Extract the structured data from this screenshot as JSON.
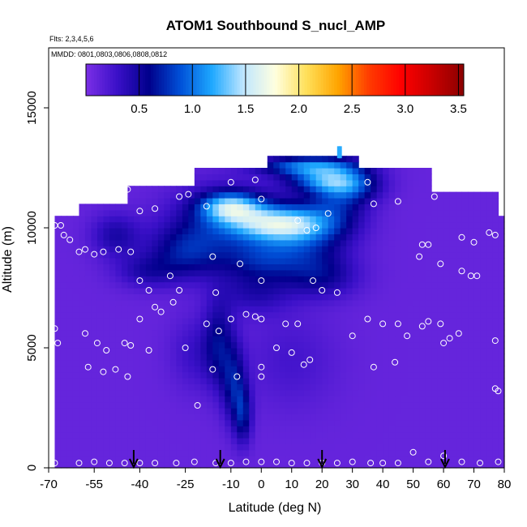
{
  "chart_data": {
    "type": "heatmap",
    "title": "ATOM1 Southbound S_nucl_AMP",
    "subtitle_flights": "Flts: 2,3,4,5,6",
    "subtitle_dates": "MMDD: 0801,0803,0806,0808,0812",
    "xlabel": "Latitude (deg N)",
    "ylabel": "Altitude (m)",
    "xlim": [
      -70,
      80
    ],
    "ylim": [
      0,
      17500
    ],
    "x_ticks": [
      -70,
      -55,
      -40,
      -25,
      -10,
      0,
      10,
      20,
      30,
      40,
      50,
      60,
      70,
      80
    ],
    "x_tick_labels": [
      "-70",
      "-55",
      "-40",
      "-25",
      "-10",
      "0",
      "10",
      "20",
      "30",
      "40",
      "50",
      "60",
      "70",
      "80"
    ],
    "y_ticks": [
      0,
      5000,
      10000,
      15000
    ],
    "y_tick_labels": [
      "0",
      "5000",
      "10000",
      "15000"
    ],
    "colorbar": {
      "min": 0,
      "max": 3.55,
      "ticks": [
        0.5,
        1.0,
        1.5,
        2.0,
        2.5,
        3.0,
        3.5
      ],
      "tick_labels": [
        "0.5",
        "1.0",
        "1.5",
        "2.0",
        "2.5",
        "3.0",
        "3.5"
      ],
      "colors": [
        "#7b2fe6",
        "#3a10c8",
        "#00008b",
        "#0050d8",
        "#1ea8ff",
        "#bfe6ff",
        "#ffffe0",
        "#ffe05a",
        "#ffa500",
        "#ff3a00",
        "#ff0000",
        "#c80000",
        "#8b0000"
      ]
    },
    "background_value": 0.1,
    "domain": {
      "top_by_latitude": [
        [
          -68,
          10500
        ],
        [
          -60,
          10500
        ],
        [
          -58,
          11000
        ],
        [
          -45,
          11000
        ],
        [
          -42,
          11600
        ],
        [
          -22,
          11600
        ],
        [
          -20,
          12400
        ],
        [
          -18,
          12400
        ],
        [
          2,
          12400
        ],
        [
          3,
          12900
        ],
        [
          32,
          12900
        ],
        [
          34,
          12400
        ],
        [
          55,
          12400
        ],
        [
          56,
          11400
        ],
        [
          78,
          11400
        ],
        [
          80,
          10300
        ]
      ]
    },
    "blobs": [
      {
        "lat": -12,
        "alt": 10300,
        "value": 0.45,
        "width_lat": 18,
        "width_alt": 1500
      },
      {
        "lat": 5,
        "alt": 10200,
        "value": 1.05,
        "width_lat": 16,
        "width_alt": 700
      },
      {
        "lat": -10,
        "alt": 10900,
        "value": 1.0,
        "width_lat": 10,
        "width_alt": 600
      },
      {
        "lat": 14,
        "alt": 9700,
        "value": 0.55,
        "width_lat": 14,
        "width_alt": 1300
      },
      {
        "lat": 25,
        "alt": 11200,
        "value": 0.45,
        "width_lat": 10,
        "width_alt": 1300
      },
      {
        "lat": 15,
        "alt": 12600,
        "value": 0.85,
        "width_lat": 16,
        "width_alt": 400
      },
      {
        "lat": 20,
        "alt": 12000,
        "value": 0.7,
        "width_lat": 12,
        "width_alt": 500
      },
      {
        "lat": 30,
        "alt": 11800,
        "value": 0.5,
        "width_lat": 10,
        "width_alt": 700
      },
      {
        "lat": -25,
        "alt": 9000,
        "value": 0.5,
        "width_lat": 12,
        "width_alt": 1100
      },
      {
        "lat": 0,
        "alt": 8700,
        "value": 0.45,
        "width_lat": 14,
        "width_alt": 900
      },
      {
        "lat": 20,
        "alt": 8000,
        "value": 0.4,
        "width_lat": 12,
        "width_alt": 900
      },
      {
        "lat": -38,
        "alt": 8200,
        "value": 0.3,
        "width_lat": 10,
        "width_alt": 700
      },
      {
        "lat": -48,
        "alt": 9700,
        "value": 0.35,
        "width_lat": 8,
        "width_alt": 900
      },
      {
        "lat": -2,
        "alt": 7300,
        "value": 0.3,
        "width_lat": 12,
        "width_alt": 900
      },
      {
        "lat": -14,
        "alt": 5200,
        "value": 0.45,
        "width_lat": 5,
        "width_alt": 1800
      },
      {
        "lat": -9,
        "alt": 3500,
        "value": 0.5,
        "width_lat": 4,
        "width_alt": 1600
      },
      {
        "lat": -6,
        "alt": 2200,
        "value": 0.5,
        "width_lat": 3,
        "width_alt": 1200
      },
      {
        "lat": -22,
        "alt": 4800,
        "value": 0.2,
        "width_lat": 8,
        "width_alt": 1500
      },
      {
        "lat": 10,
        "alt": 4500,
        "value": 0.15,
        "width_lat": 15,
        "width_alt": 2000
      }
    ],
    "sample_points": [
      [
        -68,
        10100
      ],
      [
        -66,
        10100
      ],
      [
        -65,
        9700
      ],
      [
        -63,
        9500
      ],
      [
        -60,
        9000
      ],
      [
        -58,
        9100
      ],
      [
        -55,
        8900
      ],
      [
        -52,
        9000
      ],
      [
        -68,
        5800
      ],
      [
        -67,
        5200
      ],
      [
        -58,
        5600
      ],
      [
        -57,
        4200
      ],
      [
        -54,
        5200
      ],
      [
        -52,
        4000
      ],
      [
        -51,
        4900
      ],
      [
        -48,
        4100
      ],
      [
        -45,
        5200
      ],
      [
        -44,
        3800
      ],
      [
        -43,
        5100
      ],
      [
        -40,
        6200
      ],
      [
        -37,
        4900
      ],
      [
        -35,
        6700
      ],
      [
        -33,
        6500
      ],
      [
        -29,
        6900
      ],
      [
        -25,
        5000
      ],
      [
        -21,
        2600
      ],
      [
        -18,
        6000
      ],
      [
        -16,
        4100
      ],
      [
        -14,
        5700
      ],
      [
        -10,
        6200
      ],
      [
        -8,
        3800
      ],
      [
        -5,
        6400
      ],
      [
        -2,
        6300
      ],
      [
        0,
        6200
      ],
      [
        0,
        4200
      ],
      [
        0,
        3800
      ],
      [
        5,
        5000
      ],
      [
        8,
        6000
      ],
      [
        10,
        4800
      ],
      [
        12,
        6000
      ],
      [
        14,
        4300
      ],
      [
        16,
        4500
      ],
      [
        17,
        7800
      ],
      [
        20,
        7400
      ],
      [
        25,
        7300
      ],
      [
        30,
        5500
      ],
      [
        35,
        6200
      ],
      [
        40,
        6000
      ],
      [
        44,
        4400
      ],
      [
        37,
        4200
      ],
      [
        45,
        6000
      ],
      [
        48,
        5500
      ],
      [
        53,
        5900
      ],
      [
        55,
        6100
      ],
      [
        59,
        6000
      ],
      [
        60,
        5200
      ],
      [
        62,
        5400
      ],
      [
        65,
        5600
      ],
      [
        66,
        8200
      ],
      [
        69,
        8000
      ],
      [
        71,
        8000
      ],
      [
        77,
        3300
      ],
      [
        78,
        3200
      ],
      [
        77,
        5300
      ],
      [
        52,
        8800
      ],
      [
        53,
        9300
      ],
      [
        55,
        9300
      ],
      [
        59,
        8500
      ],
      [
        66,
        9600
      ],
      [
        70,
        9400
      ],
      [
        75,
        9800
      ],
      [
        77,
        9700
      ],
      [
        -44,
        11600
      ],
      [
        -40,
        10700
      ],
      [
        -35,
        10800
      ],
      [
        -27,
        11300
      ],
      [
        -24,
        11400
      ],
      [
        -18,
        10900
      ],
      [
        -16,
        8800
      ],
      [
        -10,
        11900
      ],
      [
        -7,
        8500
      ],
      [
        -2,
        12000
      ],
      [
        0,
        11200
      ],
      [
        0,
        7800
      ],
      [
        12,
        10300
      ],
      [
        15,
        9900
      ],
      [
        18,
        10000
      ],
      [
        22,
        10600
      ],
      [
        35,
        11900
      ],
      [
        37,
        11000
      ],
      [
        45,
        11100
      ],
      [
        57,
        11300
      ],
      [
        -47,
        9100
      ],
      [
        -43,
        9000
      ],
      [
        -40,
        7800
      ],
      [
        -37,
        7400
      ],
      [
        -30,
        8000
      ],
      [
        -27,
        7400
      ],
      [
        -15,
        7300
      ],
      [
        -68,
        200
      ],
      [
        -60,
        200
      ],
      [
        -55,
        250
      ],
      [
        -50,
        200
      ],
      [
        -45,
        200
      ],
      [
        -40,
        200
      ],
      [
        -35,
        200
      ],
      [
        -28,
        200
      ],
      [
        -22,
        250
      ],
      [
        -15,
        200
      ],
      [
        -10,
        200
      ],
      [
        -5,
        250
      ],
      [
        0,
        250
      ],
      [
        5,
        250
      ],
      [
        10,
        200
      ],
      [
        15,
        200
      ],
      [
        20,
        200
      ],
      [
        25,
        200
      ],
      [
        30,
        250
      ],
      [
        36,
        200
      ],
      [
        40,
        200
      ],
      [
        45,
        200
      ],
      [
        50,
        650
      ],
      [
        55,
        250
      ],
      [
        60,
        500
      ],
      [
        66,
        250
      ],
      [
        72,
        200
      ],
      [
        78,
        250
      ]
    ],
    "column_stripes": [
      26,
      25.5
    ],
    "arrows_latitude": [
      -42,
      -13.5,
      20,
      60.5
    ]
  }
}
